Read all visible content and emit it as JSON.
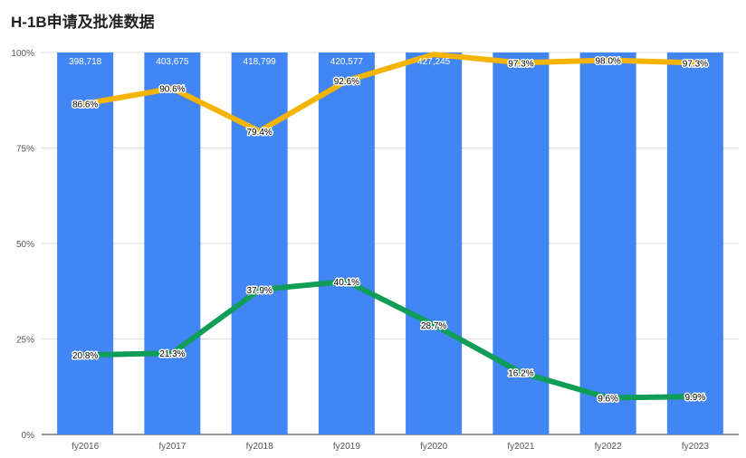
{
  "title": "H-1B申请及批准数据",
  "chart_data": {
    "type": "bar",
    "categories": [
      "fy2016",
      "fy2017",
      "fy2018",
      "fy2019",
      "fy2020",
      "fy2021",
      "fy2022",
      "fy2023"
    ],
    "y_ticks": [
      "0%",
      "25%",
      "50%",
      "75%",
      "100%"
    ],
    "ylim": [
      0,
      100
    ],
    "bars": {
      "color": "#4285F4",
      "values": [
        100,
        100,
        100,
        100,
        100,
        100,
        100,
        100
      ],
      "labels": [
        "398,718",
        "403,675",
        "418,799",
        "420,577",
        "427,245",
        "",
        "",
        ""
      ]
    },
    "series": [
      {
        "type": "line",
        "color": "#F4B400",
        "values": [
          86.6,
          90.6,
          79.4,
          92.6,
          99.5,
          97.3,
          98.0,
          97.3
        ],
        "labels": [
          "86.6%",
          "90.6%",
          "79.4%",
          "92.6%",
          "",
          "97.3%",
          "98.0%",
          "97.3%"
        ]
      },
      {
        "type": "line",
        "color": "#0F9D58",
        "values": [
          20.8,
          21.3,
          37.9,
          40.1,
          28.7,
          16.2,
          9.6,
          9.9
        ],
        "labels": [
          "20.8%",
          "21.3%",
          "37.9%",
          "40.1%",
          "28.7%",
          "16.2%",
          "9.6%",
          "9.9%"
        ]
      }
    ],
    "grid": true
  }
}
